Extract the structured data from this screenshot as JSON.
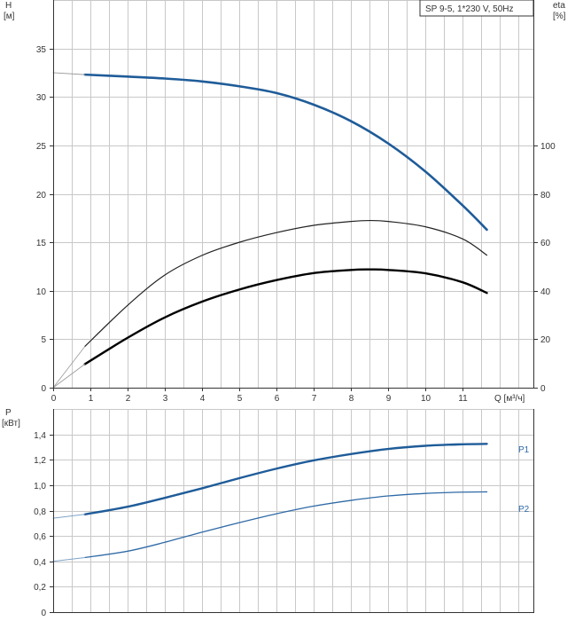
{
  "chart_data": [
    {
      "type": "line",
      "title": "SP 9-5, 1*230 V, 50Hz",
      "xlabel": "Q [м³/ч]",
      "ylabel": "H",
      "ylabel_unit": "[м]",
      "y2label": "eta",
      "y2label_unit": "[%]",
      "xlim": [
        0,
        12.9
      ],
      "ylim": [
        0,
        40
      ],
      "y2lim": [
        0,
        160
      ],
      "x_ticks": [
        "0",
        "1",
        "2",
        "3",
        "4",
        "5",
        "6",
        "7",
        "8",
        "9",
        "10",
        "11"
      ],
      "y_ticks": [
        "0",
        "5",
        "10",
        "15",
        "20",
        "25",
        "30",
        "35"
      ],
      "y2_ticks": [
        "0",
        "20",
        "40",
        "60",
        "80",
        "100"
      ],
      "grid": true,
      "series": [
        {
          "id": "H",
          "axis": "left",
          "color": "#1f5c99",
          "x": [
            0.85,
            2,
            3,
            4,
            5,
            6,
            7,
            8,
            9,
            10,
            11,
            11.65
          ],
          "y": [
            32.3,
            32.1,
            31.9,
            31.6,
            31.1,
            30.4,
            29.2,
            27.5,
            25.2,
            22.3,
            18.8,
            16.3
          ]
        },
        {
          "id": "H-ext",
          "axis": "left",
          "color": "#9a9a9a",
          "x": [
            0,
            0.85
          ],
          "y": [
            32.5,
            32.3
          ]
        },
        {
          "id": "eta-thin",
          "axis": "right",
          "color": "#222222",
          "x": [
            0.85,
            2,
            3,
            4,
            5,
            6,
            7,
            8,
            8.5,
            9,
            10,
            11,
            11.65
          ],
          "y": [
            17.0,
            34.0,
            46.5,
            54.6,
            60.0,
            64.0,
            67.0,
            68.6,
            69.0,
            68.6,
            66.4,
            61.4,
            54.7
          ]
        },
        {
          "id": "eta-thin-ext",
          "axis": "right",
          "color": "#9a9a9a",
          "x": [
            0,
            0.85
          ],
          "y": [
            0,
            17.0
          ]
        },
        {
          "id": "eta-bold",
          "axis": "right",
          "color": "#000000",
          "x": [
            0.85,
            2,
            3,
            4,
            5,
            6,
            7,
            8,
            8.5,
            9,
            10,
            11,
            11.65
          ],
          "y": [
            9.7,
            20.6,
            29.0,
            35.5,
            40.5,
            44.4,
            47.3,
            48.6,
            48.8,
            48.6,
            47.2,
            43.5,
            39.1
          ]
        },
        {
          "id": "eta-bold-ext",
          "axis": "right",
          "color": "#9a9a9a",
          "x": [
            0,
            0.85
          ],
          "y": [
            0,
            9.7
          ]
        }
      ]
    },
    {
      "type": "line",
      "ylabel": "P",
      "ylabel_unit": "[кВт]",
      "xlim": [
        0,
        12.9
      ],
      "ylim": [
        0,
        1.6
      ],
      "y_ticks": [
        "0",
        "0,2",
        "0,4",
        "0,6",
        "0,8",
        "1,0",
        "1,2",
        "1,4"
      ],
      "grid": true,
      "series": [
        {
          "id": "P1",
          "name": "P1",
          "color": "#1f5c99",
          "x": [
            0.85,
            2,
            3,
            4,
            5,
            6,
            7,
            8,
            9,
            10,
            11,
            11.65
          ],
          "y": [
            0.77,
            0.83,
            0.9,
            0.975,
            1.055,
            1.13,
            1.195,
            1.245,
            1.285,
            1.31,
            1.322,
            1.325
          ]
        },
        {
          "id": "P1-ext",
          "color": "#7fa3c8",
          "x": [
            0,
            0.85
          ],
          "y": [
            0.74,
            0.77
          ]
        },
        {
          "id": "P2",
          "name": "P2",
          "color": "#2f6aa6",
          "x": [
            0.85,
            2,
            3,
            4,
            5,
            6,
            7,
            8,
            9,
            10,
            11,
            11.65
          ],
          "y": [
            0.43,
            0.48,
            0.55,
            0.63,
            0.705,
            0.775,
            0.835,
            0.88,
            0.915,
            0.935,
            0.945,
            0.947
          ]
        },
        {
          "id": "P2-ext",
          "color": "#7fa3c8",
          "x": [
            0,
            0.85
          ],
          "y": [
            0.4,
            0.43
          ]
        }
      ]
    }
  ]
}
